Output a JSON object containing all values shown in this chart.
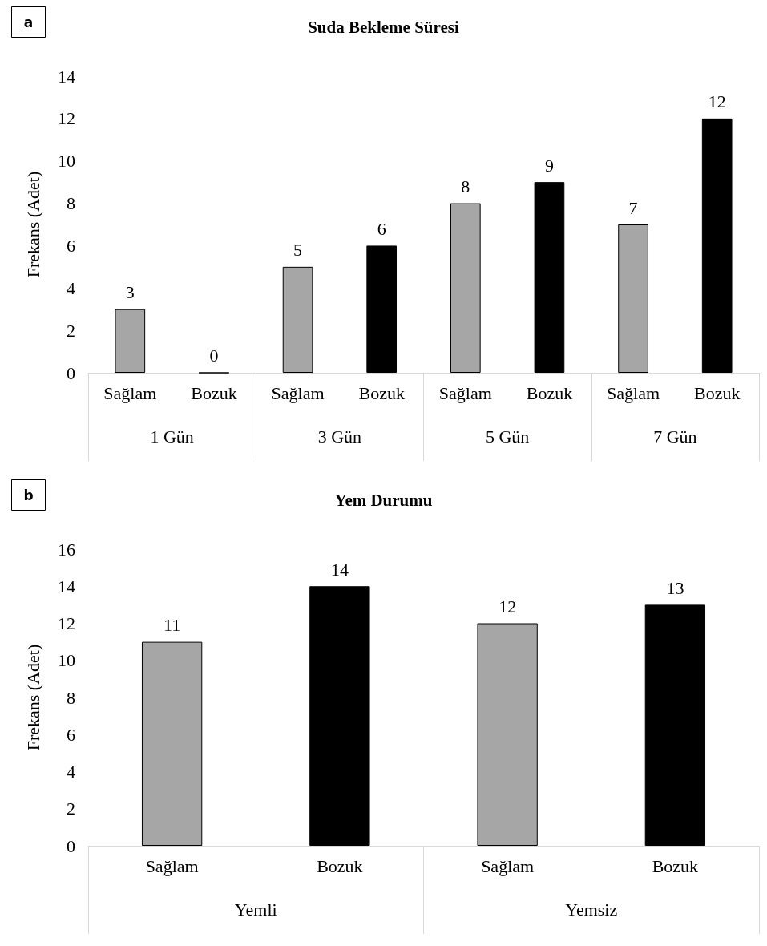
{
  "chart_data": [
    {
      "type": "bar",
      "title": "Suda Bekleme Süresi",
      "subtitle": "a",
      "ylabel": "Frekans (Adet)",
      "categories": [
        "Sağlam",
        "Bozuk",
        "Sağlam",
        "Bozuk",
        "Sağlam",
        "Bozuk",
        "Sağlam",
        "Bozuk"
      ],
      "values": [
        3,
        0,
        5,
        6,
        8,
        9,
        7,
        12
      ],
      "colors": [
        "#a6a6a6",
        "#000000",
        "#a6a6a6",
        "#000000",
        "#a6a6a6",
        "#000000",
        "#a6a6a6",
        "#000000"
      ],
      "annotations": [
        "1 Gün",
        "3 Gün",
        "5 Gün",
        "7 Gün"
      ],
      "ylim": [
        0,
        14
      ],
      "yticks": [
        0,
        2,
        4,
        6,
        8,
        10,
        12,
        14
      ],
      "data_labels": true,
      "grid": false
    },
    {
      "type": "bar",
      "title": "Yem Durumu",
      "subtitle": "b",
      "ylabel": "Frekans (Adet)",
      "categories": [
        "Sağlam",
        "Bozuk",
        "Sağlam",
        "Bozuk"
      ],
      "values": [
        11,
        14,
        12,
        13
      ],
      "colors": [
        "#a6a6a6",
        "#000000",
        "#a6a6a6",
        "#000000"
      ],
      "annotations": [
        "Yemli",
        "Yemsiz"
      ],
      "ylim": [
        0,
        16
      ],
      "yticks": [
        0,
        2,
        4,
        6,
        8,
        10,
        12,
        14,
        16
      ],
      "data_labels": true,
      "grid": false
    }
  ]
}
